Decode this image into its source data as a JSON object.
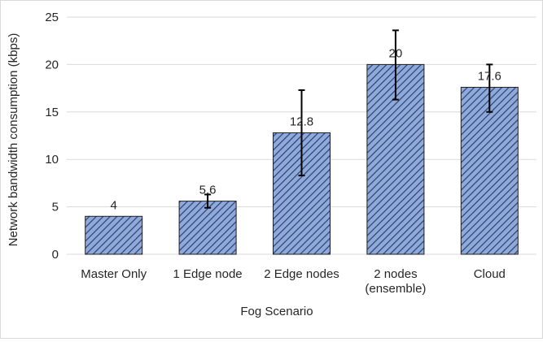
{
  "chart_data": {
    "type": "bar",
    "title": "",
    "xlabel": "Fog Scenario",
    "ylabel": "Network bandwidth consumption (kbps)",
    "ylim": [
      0,
      25
    ],
    "yticks": [
      0,
      5,
      10,
      15,
      20,
      25
    ],
    "grid": true,
    "legend": "none",
    "categories": [
      [
        "Master Only"
      ],
      [
        "1 Edge node"
      ],
      [
        "2 Edge nodes"
      ],
      [
        "2 nodes",
        "(ensemble)"
      ],
      [
        "Cloud"
      ]
    ],
    "values": [
      4,
      5.6,
      12.8,
      20,
      17.6
    ],
    "data_labels": [
      "4",
      "5.6",
      "12.8",
      "20",
      "17.6"
    ],
    "error_low": [
      4,
      4.9,
      8.3,
      16.3,
      15.0
    ],
    "error_high": [
      4,
      6.3,
      17.3,
      23.6,
      20.0
    ],
    "colors": {
      "bar_fill": "#8eaadb",
      "bar_hatch": "#2f3f6e",
      "bar_border": "#1f1f1f",
      "grid": "#d9d9d9",
      "error_bar": "#000000",
      "text": "#262626"
    }
  }
}
